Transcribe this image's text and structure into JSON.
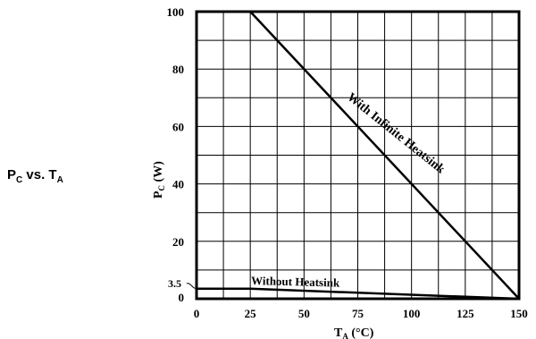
{
  "chart_data": {
    "type": "line",
    "title": {
      "main": "P",
      "main_sub": "C",
      "vs": " vs. T",
      "vs_sub": "A"
    },
    "xlabel": {
      "main": "T",
      "sub": "A",
      "unit": " (°C)"
    },
    "ylabel": {
      "main": "P",
      "sub": "C",
      "unit": " (W)"
    },
    "xlim": [
      0,
      150
    ],
    "ylim": [
      0,
      100
    ],
    "x_ticks": [
      0,
      25,
      50,
      75,
      100,
      125,
      150
    ],
    "y_ticks": [
      0,
      20,
      40,
      60,
      80,
      100
    ],
    "y_extra_label": "3.5",
    "grid": true,
    "series": [
      {
        "name": "With Infinite Heatsink",
        "points": [
          [
            25,
            100
          ],
          [
            150,
            0
          ]
        ]
      },
      {
        "name": "Without Heatsink",
        "points": [
          [
            0,
            3.5
          ],
          [
            25,
            3.5
          ],
          [
            150,
            0
          ]
        ]
      }
    ]
  }
}
